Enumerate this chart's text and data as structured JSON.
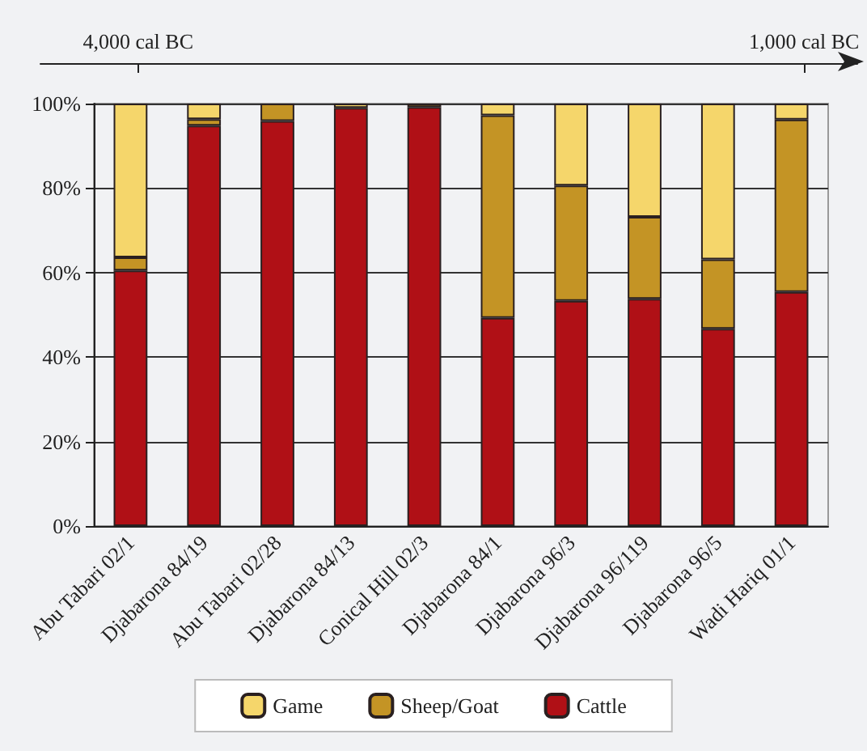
{
  "chart_data": {
    "type": "bar",
    "stacked": true,
    "categories": [
      "Abu Tabari 02/1",
      "Djabarona 84/19",
      "Abu Tabari 02/28",
      "Djabarona 84/13",
      "Conical Hill 02/3",
      "Djabarona 84/1",
      "Djabarona 96/3",
      "Djabarona 96/119",
      "Djabarona 96/5",
      "Wadi Hariq 01/1"
    ],
    "series": [
      {
        "name": "Cattle",
        "color": "#b01016",
        "values": [
          60.5,
          94.8,
          95.9,
          99.0,
          99.2,
          49.3,
          53.3,
          53.8,
          46.7,
          55.4
        ]
      },
      {
        "name": "Sheep/Goat",
        "color": "#c49425",
        "values": [
          3.1,
          1.5,
          4.1,
          0,
          0.8,
          47.9,
          27.3,
          19.4,
          16.4,
          40.8
        ]
      },
      {
        "name": "Game",
        "color": "#f5d66b",
        "values": [
          36.4,
          3.7,
          0,
          1.0,
          0,
          2.8,
          19.4,
          26.8,
          36.9,
          3.8
        ]
      }
    ],
    "ylim": [
      0,
      100
    ],
    "yticks": [
      {
        "value": 0,
        "label": "0%"
      },
      {
        "value": 20,
        "label": "20%"
      },
      {
        "value": 40,
        "label": "40%"
      },
      {
        "value": 60,
        "label": "60%"
      },
      {
        "value": 80,
        "label": "80%"
      },
      {
        "value": 100,
        "label": "100%"
      }
    ],
    "x2lim": [
      -4440,
      -760
    ],
    "x2ticks": [
      {
        "value": -4000,
        "label": "4,000 cal BC"
      },
      {
        "value": -1000,
        "label": "1,000 cal BC"
      }
    ],
    "grid": "y",
    "legend": "bottom"
  }
}
